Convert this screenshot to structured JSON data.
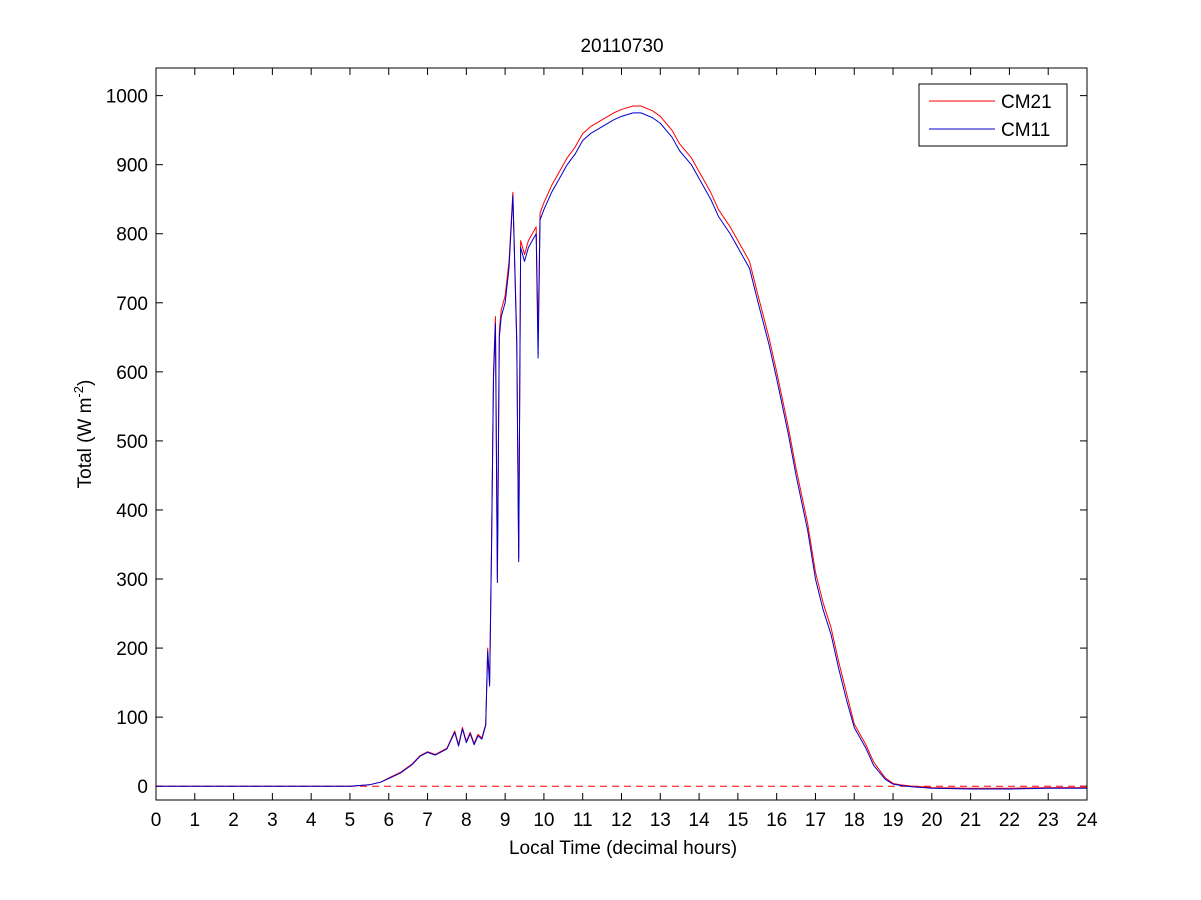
{
  "chart_data": {
    "type": "line",
    "title": "20110730",
    "xlabel": "Local Time (decimal hours)",
    "ylabel_main": "Total (W m",
    "ylabel_sup": "-2",
    "ylabel_close": ")",
    "xlim": [
      0,
      24
    ],
    "ylim": [
      -20,
      1040
    ],
    "xticks": [
      0,
      1,
      2,
      3,
      4,
      5,
      6,
      7,
      8,
      9,
      10,
      11,
      12,
      13,
      14,
      15,
      16,
      17,
      18,
      19,
      20,
      21,
      22,
      23,
      24
    ],
    "yticks": [
      0,
      100,
      200,
      300,
      400,
      500,
      600,
      700,
      800,
      900,
      1000
    ],
    "grid": false,
    "legend_position": "top-right",
    "reference_line": {
      "y": 0,
      "style": "dashed",
      "color": "#ff0000"
    },
    "series": [
      {
        "name": "CM21",
        "color": "#ff0000",
        "x": [
          0,
          5,
          5.5,
          5.8,
          6,
          6.3,
          6.6,
          6.8,
          7,
          7.2,
          7.5,
          7.7,
          7.8,
          7.9,
          8,
          8.1,
          8.2,
          8.3,
          8.4,
          8.5,
          8.55,
          8.6,
          8.65,
          8.7,
          8.75,
          8.8,
          8.85,
          8.9,
          9,
          9.1,
          9.2,
          9.3,
          9.35,
          9.4,
          9.45,
          9.5,
          9.6,
          9.7,
          9.8,
          9.85,
          9.9,
          10,
          10.2,
          10.4,
          10.6,
          10.8,
          11,
          11.2,
          11.5,
          11.8,
          12,
          12.3,
          12.5,
          12.8,
          13,
          13.3,
          13.5,
          13.8,
          14,
          14.3,
          14.5,
          14.8,
          15,
          15.3,
          15.5,
          15.8,
          16,
          16.3,
          16.5,
          16.8,
          17,
          17.2,
          17.4,
          17.6,
          17.8,
          18,
          18.3,
          18.5,
          18.8,
          19,
          19.2,
          19.5,
          19.8,
          20,
          21,
          22,
          23,
          24
        ],
        "y": [
          0,
          0,
          2,
          6,
          12,
          20,
          32,
          44,
          50,
          46,
          55,
          80,
          60,
          85,
          65,
          78,
          62,
          75,
          70,
          90,
          200,
          150,
          350,
          600,
          680,
          300,
          660,
          690,
          710,
          760,
          860,
          650,
          330,
          790,
          780,
          770,
          790,
          800,
          810,
          650,
          830,
          845,
          870,
          890,
          910,
          925,
          945,
          955,
          965,
          975,
          980,
          985,
          985,
          978,
          970,
          950,
          930,
          910,
          890,
          860,
          835,
          810,
          790,
          760,
          715,
          650,
          600,
          520,
          460,
          380,
          310,
          265,
          230,
          180,
          135,
          90,
          60,
          35,
          12,
          4,
          2,
          0,
          -1,
          -2,
          -3,
          -3,
          -2,
          -2
        ]
      },
      {
        "name": "CM11",
        "color": "#0000cc",
        "x": [
          0,
          5,
          5.5,
          5.8,
          6,
          6.3,
          6.6,
          6.8,
          7,
          7.2,
          7.5,
          7.7,
          7.8,
          7.9,
          8,
          8.1,
          8.2,
          8.3,
          8.4,
          8.5,
          8.55,
          8.6,
          8.65,
          8.7,
          8.75,
          8.8,
          8.85,
          8.9,
          9,
          9.1,
          9.2,
          9.3,
          9.35,
          9.4,
          9.45,
          9.5,
          9.6,
          9.7,
          9.8,
          9.85,
          9.9,
          10,
          10.2,
          10.4,
          10.6,
          10.8,
          11,
          11.2,
          11.5,
          11.8,
          12,
          12.3,
          12.5,
          12.8,
          13,
          13.3,
          13.5,
          13.8,
          14,
          14.3,
          14.5,
          14.8,
          15,
          15.3,
          15.5,
          15.8,
          16,
          16.3,
          16.5,
          16.8,
          17,
          17.2,
          17.4,
          17.6,
          17.8,
          18,
          18.3,
          18.5,
          18.8,
          19,
          19.2,
          19.5,
          19.8,
          20,
          21,
          22,
          23,
          24
        ],
        "y": [
          0,
          0,
          2,
          6,
          11,
          19,
          31,
          43,
          49,
          45,
          54,
          78,
          58,
          83,
          63,
          76,
          60,
          73,
          68,
          88,
          195,
          145,
          345,
          590,
          670,
          295,
          650,
          680,
          700,
          750,
          855,
          640,
          325,
          780,
          770,
          760,
          780,
          790,
          800,
          620,
          820,
          835,
          860,
          880,
          900,
          915,
          935,
          945,
          955,
          965,
          970,
          975,
          975,
          968,
          960,
          940,
          920,
          900,
          880,
          850,
          825,
          800,
          780,
          750,
          705,
          640,
          590,
          510,
          450,
          370,
          300,
          255,
          220,
          170,
          125,
          85,
          55,
          30,
          10,
          3,
          1,
          -1,
          -2,
          -3,
          -4,
          -4,
          -3,
          -3
        ]
      }
    ]
  }
}
